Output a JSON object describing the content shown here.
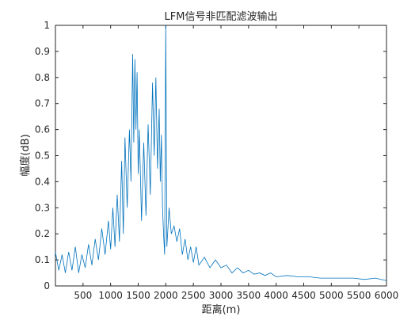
{
  "chart_data": {
    "type": "line",
    "title": "LFM信号非匹配滤波输出",
    "xlabel": "距离(m)",
    "ylabel": "幅度(dB)",
    "xlim": [
      0,
      6000
    ],
    "ylim": [
      0,
      1
    ],
    "xticks": [
      500,
      1000,
      1500,
      2000,
      2500,
      3000,
      3500,
      4000,
      4500,
      5000,
      5500,
      6000
    ],
    "yticks": [
      0,
      0.1,
      0.2,
      0.3,
      0.4,
      0.5,
      0.6,
      0.7,
      0.8,
      0.9,
      1
    ],
    "grid": false,
    "series": [
      {
        "color": "#0072BD",
        "x": [
          0,
          60,
          120,
          180,
          240,
          300,
          360,
          420,
          480,
          540,
          600,
          660,
          720,
          780,
          840,
          900,
          960,
          1000,
          1040,
          1080,
          1120,
          1160,
          1200,
          1230,
          1260,
          1300,
          1340,
          1370,
          1400,
          1420,
          1440,
          1460,
          1480,
          1500,
          1520,
          1560,
          1600,
          1640,
          1680,
          1720,
          1760,
          1790,
          1820,
          1850,
          1880,
          1900,
          1920,
          1940,
          1960,
          1980,
          2000,
          2020,
          2060,
          2100,
          2150,
          2200,
          2250,
          2300,
          2350,
          2400,
          2450,
          2500,
          2550,
          2600,
          2700,
          2800,
          2900,
          3000,
          3100,
          3200,
          3300,
          3400,
          3500,
          3600,
          3700,
          3800,
          3900,
          4000,
          4200,
          4400,
          4600,
          4800,
          5000,
          5200,
          5400,
          5600,
          5800,
          6000
        ],
        "y": [
          0.13,
          0.06,
          0.12,
          0.05,
          0.13,
          0.06,
          0.15,
          0.05,
          0.12,
          0.07,
          0.16,
          0.08,
          0.18,
          0.1,
          0.22,
          0.12,
          0.25,
          0.14,
          0.3,
          0.15,
          0.35,
          0.17,
          0.48,
          0.2,
          0.57,
          0.3,
          0.6,
          0.4,
          0.89,
          0.55,
          0.87,
          0.6,
          0.82,
          0.43,
          0.6,
          0.25,
          0.55,
          0.27,
          0.62,
          0.35,
          0.78,
          0.5,
          0.8,
          0.45,
          0.68,
          0.4,
          0.58,
          0.3,
          0.2,
          0.12,
          1.0,
          0.15,
          0.3,
          0.2,
          0.23,
          0.17,
          0.22,
          0.12,
          0.18,
          0.1,
          0.15,
          0.09,
          0.15,
          0.08,
          0.11,
          0.07,
          0.1,
          0.07,
          0.08,
          0.05,
          0.07,
          0.05,
          0.06,
          0.045,
          0.05,
          0.04,
          0.05,
          0.035,
          0.04,
          0.035,
          0.035,
          0.03,
          0.03,
          0.03,
          0.03,
          0.025,
          0.03,
          0.02
        ]
      }
    ]
  }
}
